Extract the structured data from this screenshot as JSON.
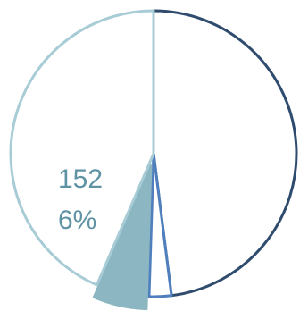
{
  "chart_data": {
    "type": "pie",
    "slices": [
      {
        "value": 48,
        "label": "",
        "color": "#2f4b6e",
        "fill": "#ffffff"
      },
      {
        "value": 2.5,
        "label": "",
        "color": "#4f7fbd",
        "fill": "#ffffff"
      },
      {
        "value": 6,
        "label": "",
        "color": "#8bb6c2",
        "fill": "#8bb6c2"
      },
      {
        "value": 43.5,
        "label": "",
        "color": "#a8ccd6",
        "fill": "#ffffff"
      }
    ],
    "data_labels": [
      {
        "slice_index": 2,
        "value_text": "152",
        "percent_text": "6%",
        "color": "#5f93a4"
      }
    ],
    "legend": "none"
  }
}
